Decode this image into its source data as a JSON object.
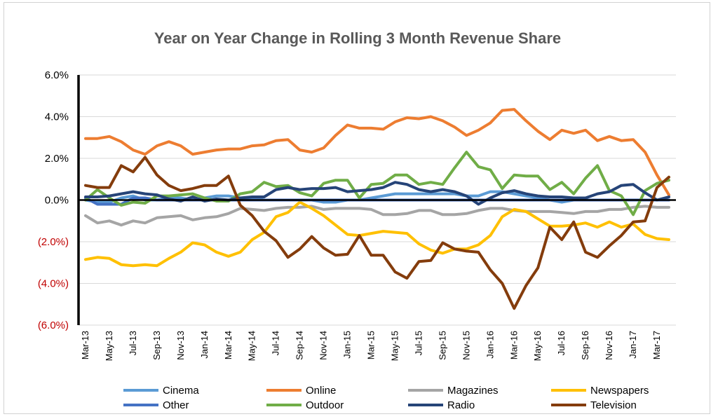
{
  "chart_data": {
    "type": "line",
    "title": "Year on Year Change in Rolling 3 Month Revenue Share",
    "ylim": [
      -6,
      6
    ],
    "y_ticks": [
      "6.0%",
      "4.0%",
      "2.0%",
      "0.0%",
      "(2.0%)",
      "(4.0%)",
      "(6.0%)"
    ],
    "negative_tick_color": "#c00000",
    "grid": "horizontal",
    "legend_position": "bottom",
    "x_labels": [
      "Mar-13",
      "May-13",
      "Jul-13",
      "Sep-13",
      "Nov-13",
      "Jan-14",
      "Mar-14",
      "May-14",
      "Jul-14",
      "Sep-14",
      "Nov-14",
      "Jan-15",
      "Mar-15",
      "May-15",
      "Jul-15",
      "Sep-15",
      "Nov-15",
      "Jan-16",
      "Mar-16",
      "May-16",
      "Jul-16",
      "Sep-16",
      "Nov-16",
      "Jan-17",
      "Mar-17"
    ],
    "x": [
      "Mar-13",
      "Apr-13",
      "May-13",
      "Jun-13",
      "Jul-13",
      "Aug-13",
      "Sep-13",
      "Oct-13",
      "Nov-13",
      "Dec-13",
      "Jan-14",
      "Feb-14",
      "Mar-14",
      "Apr-14",
      "May-14",
      "Jun-14",
      "Jul-14",
      "Aug-14",
      "Sep-14",
      "Oct-14",
      "Nov-14",
      "Dec-14",
      "Jan-15",
      "Feb-15",
      "Mar-15",
      "Apr-15",
      "May-15",
      "Jun-15",
      "Jul-15",
      "Aug-15",
      "Sep-15",
      "Oct-15",
      "Nov-15",
      "Dec-15",
      "Jan-16",
      "Feb-16",
      "Mar-16",
      "Apr-16",
      "May-16",
      "Jun-16",
      "Jul-16",
      "Aug-16",
      "Sep-16",
      "Oct-16",
      "Nov-16",
      "Dec-16",
      "Jan-17",
      "Feb-17",
      "Mar-17",
      "Apr-17"
    ],
    "series": [
      {
        "name": "Cinema",
        "color": "#5b9bd5",
        "values": [
          0.0,
          -0.1,
          -0.1,
          0.1,
          0.2,
          0.0,
          0.0,
          0.1,
          0.1,
          0.0,
          0.1,
          0.2,
          0.2,
          0.1,
          0.1,
          0.0,
          0.0,
          0.0,
          0.0,
          0.0,
          -0.1,
          -0.1,
          0.0,
          0.0,
          0.1,
          0.2,
          0.3,
          0.3,
          0.3,
          0.3,
          0.3,
          0.3,
          0.2,
          0.2,
          0.4,
          0.4,
          0.3,
          0.2,
          0.1,
          0.0,
          -0.1,
          0.0,
          0.0,
          0.0,
          0.0,
          0.0,
          0.0,
          0.0,
          0.0,
          0.0
        ]
      },
      {
        "name": "Online",
        "color": "#ed7d31",
        "values": [
          2.95,
          2.95,
          3.05,
          2.8,
          2.4,
          2.2,
          2.6,
          2.8,
          2.6,
          2.2,
          2.3,
          2.4,
          2.45,
          2.45,
          2.6,
          2.65,
          2.85,
          2.9,
          2.4,
          2.3,
          2.5,
          3.1,
          3.6,
          3.45,
          3.45,
          3.4,
          3.75,
          3.95,
          3.9,
          4.0,
          3.8,
          3.5,
          3.1,
          3.35,
          3.7,
          4.3,
          4.35,
          3.8,
          3.3,
          2.9,
          3.35,
          3.2,
          3.35,
          2.85,
          3.05,
          2.85,
          2.9,
          2.3,
          1.2,
          0.25
        ]
      },
      {
        "name": "Magazines",
        "color": "#a5a5a5",
        "values": [
          -0.75,
          -1.1,
          -1.0,
          -1.2,
          -1.0,
          -1.1,
          -0.85,
          -0.8,
          -0.75,
          -0.95,
          -0.85,
          -0.8,
          -0.65,
          -0.4,
          -0.45,
          -0.5,
          -0.4,
          -0.35,
          -0.35,
          -0.3,
          -0.45,
          -0.4,
          -0.4,
          -0.4,
          -0.45,
          -0.7,
          -0.7,
          -0.65,
          -0.5,
          -0.5,
          -0.7,
          -0.7,
          -0.65,
          -0.5,
          -0.4,
          -0.4,
          -0.5,
          -0.55,
          -0.55,
          -0.55,
          -0.6,
          -0.65,
          -0.55,
          -0.55,
          -0.45,
          -0.45,
          -0.35,
          -0.3,
          -0.35,
          -0.35
        ]
      },
      {
        "name": "Newspapers",
        "color": "#ffc000",
        "values": [
          -2.85,
          -2.75,
          -2.8,
          -3.1,
          -3.15,
          -3.1,
          -3.15,
          -2.8,
          -2.5,
          -2.05,
          -2.15,
          -2.5,
          -2.7,
          -2.5,
          -1.9,
          -1.55,
          -0.8,
          -0.6,
          -0.1,
          -0.4,
          -0.75,
          -1.2,
          -1.65,
          -1.7,
          -1.6,
          -1.5,
          -1.55,
          -1.6,
          -2.1,
          -2.4,
          -2.55,
          -2.35,
          -2.35,
          -2.15,
          -1.7,
          -0.8,
          -0.45,
          -0.55,
          -0.9,
          -1.25,
          -1.25,
          -1.2,
          -1.1,
          -1.3,
          -1.05,
          -1.3,
          -1.15,
          -1.65,
          -1.85,
          -1.9
        ]
      },
      {
        "name": "Other",
        "color": "#4472c4",
        "values": [
          0.1,
          -0.2,
          -0.2,
          -0.2,
          0.1,
          0.1,
          0.0,
          0.0,
          0.0,
          0.0,
          0.0,
          0.0,
          0.0,
          0.0,
          0.0,
          0.0,
          0.0,
          0.0,
          0.0,
          0.0,
          0.0,
          0.0,
          0.0,
          0.0,
          0.0,
          0.0,
          0.0,
          0.0,
          0.0,
          0.0,
          0.0,
          0.0,
          0.0,
          0.0,
          0.0,
          0.0,
          0.0,
          0.0,
          0.0,
          0.0,
          0.0,
          0.0,
          0.0,
          0.0,
          0.0,
          0.0,
          0.0,
          0.0,
          0.0,
          0.0
        ]
      },
      {
        "name": "Outdoor",
        "color": "#70ad47",
        "values": [
          0.0,
          0.5,
          0.1,
          -0.25,
          -0.1,
          -0.15,
          0.2,
          0.2,
          0.25,
          0.3,
          0.1,
          -0.05,
          -0.05,
          0.3,
          0.4,
          0.85,
          0.65,
          0.7,
          0.35,
          0.2,
          0.8,
          0.95,
          0.95,
          0.1,
          0.75,
          0.8,
          1.2,
          1.2,
          0.75,
          0.85,
          0.75,
          1.55,
          2.3,
          1.6,
          1.45,
          0.55,
          1.2,
          1.15,
          1.15,
          0.5,
          0.85,
          0.3,
          1.05,
          1.65,
          0.45,
          0.2,
          -0.7,
          0.45,
          0.8,
          0.95
        ]
      },
      {
        "name": "Radio",
        "color": "#264478",
        "values": [
          0.15,
          0.15,
          0.2,
          0.3,
          0.4,
          0.3,
          0.25,
          0.05,
          -0.05,
          0.15,
          -0.05,
          0.05,
          0.0,
          0.1,
          0.15,
          0.15,
          0.5,
          0.6,
          0.5,
          0.55,
          0.55,
          0.6,
          0.4,
          0.45,
          0.5,
          0.6,
          0.85,
          0.75,
          0.5,
          0.4,
          0.5,
          0.4,
          0.2,
          -0.2,
          0.1,
          0.35,
          0.45,
          0.3,
          0.2,
          0.15,
          0.15,
          0.1,
          0.1,
          0.3,
          0.4,
          0.7,
          0.75,
          0.35,
          0.0,
          0.15
        ]
      },
      {
        "name": "Television",
        "color": "#843c0c",
        "values": [
          0.7,
          0.6,
          0.6,
          1.65,
          1.35,
          2.05,
          1.2,
          0.7,
          0.45,
          0.55,
          0.7,
          0.7,
          1.15,
          -0.25,
          -0.75,
          -1.5,
          -1.95,
          -2.75,
          -2.35,
          -1.75,
          -2.3,
          -2.65,
          -2.6,
          -1.7,
          -2.65,
          -2.65,
          -3.45,
          -3.75,
          -2.95,
          -2.9,
          -2.05,
          -2.35,
          -2.45,
          -2.5,
          -3.35,
          -4.0,
          -5.2,
          -4.1,
          -3.25,
          -1.3,
          -1.9,
          -1.05,
          -2.5,
          -2.75,
          -2.2,
          -1.7,
          -1.05,
          -1.0,
          0.6,
          1.1
        ]
      }
    ]
  }
}
